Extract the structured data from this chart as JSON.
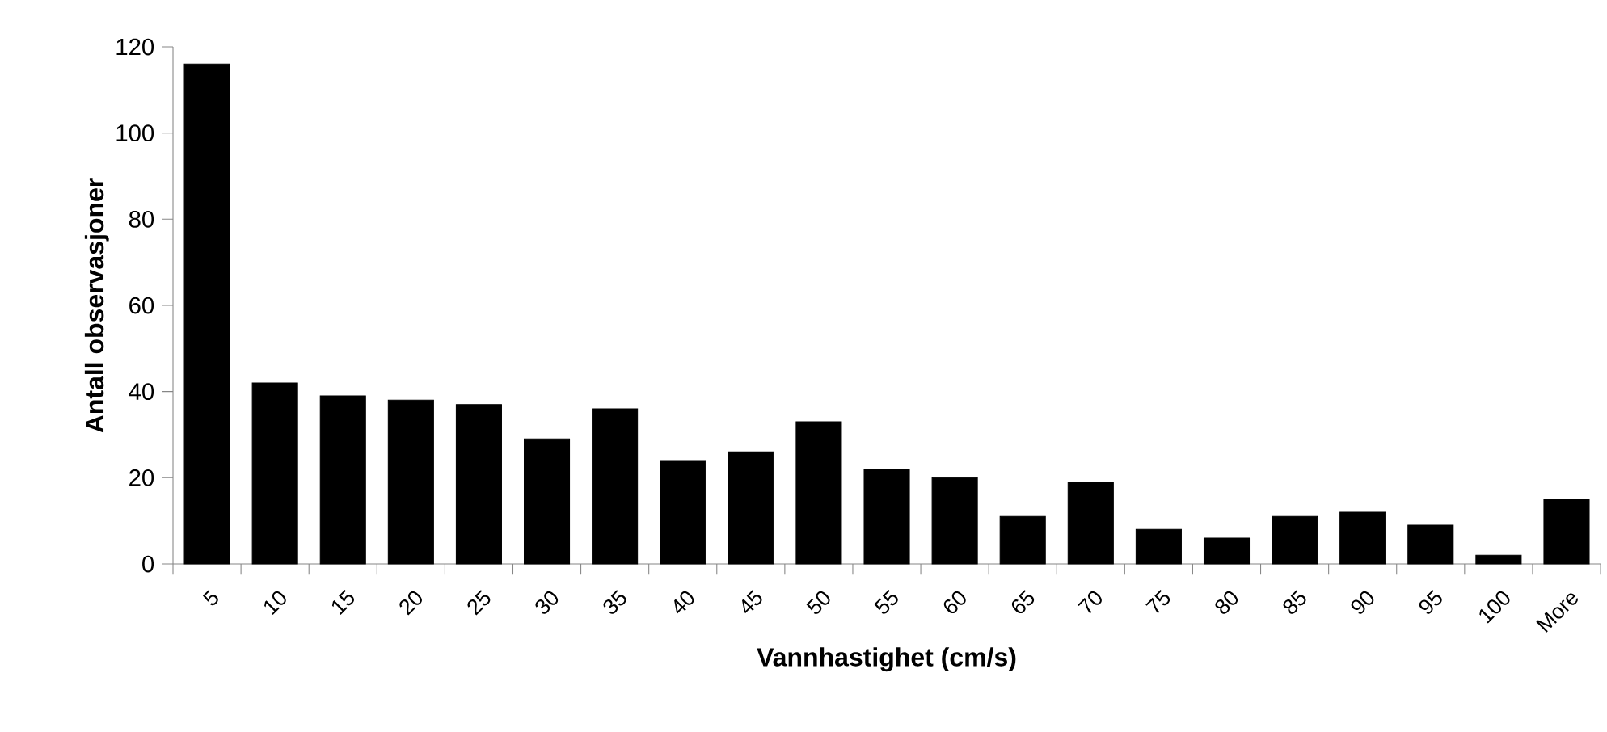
{
  "chart_data": {
    "type": "bar",
    "xlabel": "Vannhastighet (cm/s)",
    "ylabel": "Antall observasjoner",
    "categories": [
      "5",
      "10",
      "15",
      "20",
      "25",
      "30",
      "35",
      "40",
      "45",
      "50",
      "55",
      "60",
      "65",
      "70",
      "75",
      "80",
      "85",
      "90",
      "95",
      "100",
      "More"
    ],
    "values": [
      116,
      42,
      39,
      38,
      37,
      29,
      36,
      24,
      26,
      33,
      22,
      20,
      11,
      19,
      8,
      6,
      11,
      12,
      9,
      2,
      15
    ],
    "color": "#000000",
    "ylim": [
      0,
      120
    ],
    "yticks": [
      0,
      20,
      40,
      60,
      80,
      100,
      120
    ]
  }
}
